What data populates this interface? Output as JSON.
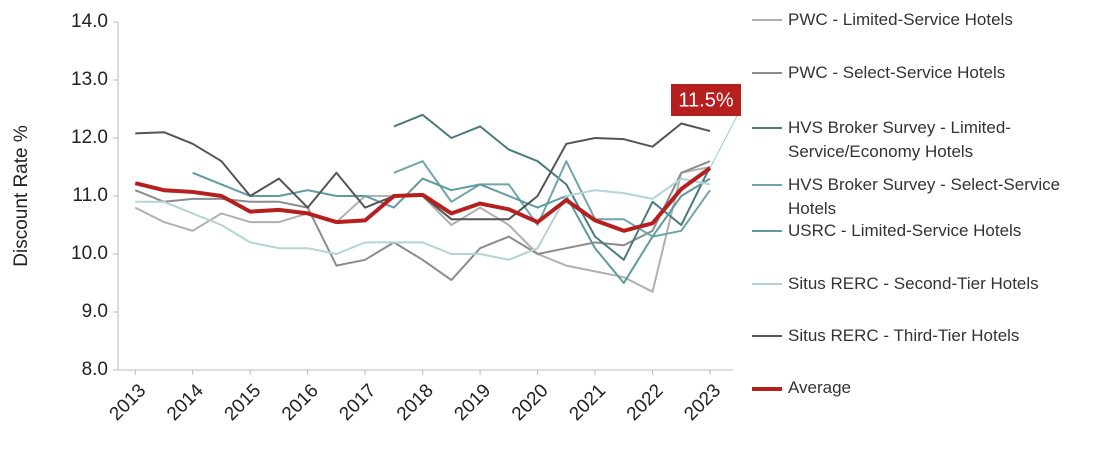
{
  "chart_data": {
    "type": "line",
    "ylabel": "Discount Rate %",
    "xlim": [
      2012.7,
      2023.4
    ],
    "xticks": [
      2013,
      2014,
      2015,
      2016,
      2017,
      2018,
      2019,
      2020,
      2021,
      2022,
      2023
    ],
    "ylim": [
      8,
      14
    ],
    "yticks": [
      {
        "value": 8,
        "label": "8.0"
      },
      {
        "value": 9,
        "label": "9.0"
      },
      {
        "value": 10,
        "label": "10.0"
      },
      {
        "value": 11,
        "label": "11.0"
      },
      {
        "value": 12,
        "label": "12.0"
      },
      {
        "value": 13,
        "label": "13.0"
      },
      {
        "value": 14,
        "label": "14.0"
      }
    ],
    "grid": false,
    "legend": "right",
    "x": [
      2013,
      2013.5,
      2014,
      2014.5,
      2015,
      2015.5,
      2016,
      2016.5,
      2017,
      2017.5,
      2018,
      2018.5,
      2019,
      2019.5,
      2020,
      2020.5,
      2021,
      2021.5,
      2022,
      2022.5,
      2023
    ],
    "series": [
      {
        "name": "PWC - Limited-Service Hotels",
        "color": "#b0b0b0",
        "width": 2,
        "values": [
          10.8,
          10.55,
          10.4,
          10.7,
          10.55,
          10.55,
          10.7,
          10.55,
          11.0,
          11.0,
          11.0,
          10.5,
          10.8,
          10.5,
          10.0,
          9.8,
          9.7,
          9.6,
          9.35,
          11.4,
          11.5
        ]
      },
      {
        "name": "PWC - Select-Service Hotels",
        "color": "#8c8c8c",
        "width": 2,
        "values": [
          11.1,
          10.9,
          10.95,
          10.95,
          10.9,
          10.9,
          10.8,
          9.8,
          9.9,
          10.2,
          9.9,
          9.55,
          10.1,
          10.3,
          10.0,
          10.1,
          10.2,
          10.15,
          10.4,
          11.4,
          11.6
        ]
      },
      {
        "name": "HVS Broker Survey - Limited-Service/Economy Hotels",
        "color": "#4b7b80",
        "width": 2,
        "values": [
          null,
          null,
          null,
          null,
          null,
          null,
          null,
          null,
          null,
          12.2,
          12.4,
          12.0,
          12.2,
          11.8,
          11.6,
          11.2,
          10.3,
          9.9,
          10.9,
          10.5,
          11.5
        ]
      },
      {
        "name": "HVS Broker Survey - Select-Service Hotels",
        "color": "#6fa5aa",
        "width": 2,
        "values": [
          null,
          null,
          null,
          null,
          null,
          null,
          null,
          null,
          null,
          11.4,
          11.6,
          10.9,
          11.2,
          11.2,
          10.5,
          11.6,
          10.6,
          10.6,
          10.3,
          10.4,
          11.1
        ]
      },
      {
        "name": "USRC - Limited-Service Hotels",
        "color": "#5d9ba1",
        "width": 2,
        "values": [
          null,
          null,
          11.4,
          11.2,
          11.0,
          11.0,
          11.1,
          11.0,
          11.0,
          10.8,
          11.3,
          11.1,
          11.2,
          11.0,
          10.8,
          11.0,
          10.1,
          9.5,
          10.3,
          11.0,
          11.3
        ]
      },
      {
        "name": "Situs RERC - Second-Tier Hotels",
        "color": "#b3d3d6",
        "width": 2,
        "values": [
          10.9,
          10.9,
          10.7,
          10.5,
          10.2,
          10.1,
          10.1,
          10.0,
          10.2,
          10.2,
          10.2,
          10.0,
          10.0,
          9.9,
          10.1,
          11.0,
          11.1,
          11.05,
          10.95,
          11.3,
          11.2
        ]
      },
      {
        "name": "Situs RERC - Third-Tier Hotels",
        "color": "#555555",
        "width": 2,
        "values": [
          12.08,
          12.1,
          11.9,
          11.6,
          11.0,
          11.3,
          10.8,
          11.4,
          10.8,
          11.0,
          11.0,
          10.6,
          10.6,
          10.6,
          11.0,
          11.9,
          12.0,
          11.98,
          11.85,
          12.25,
          12.12
        ]
      },
      {
        "name": "Average",
        "color": "#b5201f",
        "width": 4,
        "values": [
          11.22,
          11.1,
          11.07,
          11.0,
          10.73,
          10.76,
          10.7,
          10.55,
          10.58,
          11.0,
          11.02,
          10.7,
          10.87,
          10.77,
          10.55,
          10.93,
          10.58,
          10.4,
          10.53,
          11.12,
          11.48
        ]
      }
    ],
    "annotations": [
      {
        "text": "11.5%",
        "color": "#b5201f"
      }
    ]
  }
}
